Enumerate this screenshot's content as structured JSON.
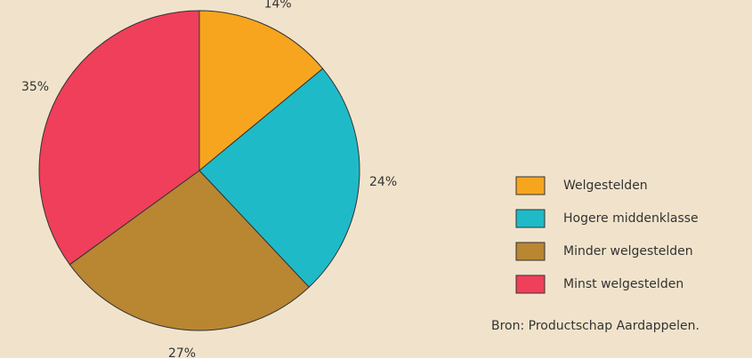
{
  "chart_data": {
    "type": "pie",
    "categories": [
      "Welgestelden",
      "Hogere middenklasse",
      "Minder welgestelden",
      "Minst welgestelden"
    ],
    "values": [
      14,
      24,
      27,
      35
    ],
    "value_labels": [
      "14%",
      "24%",
      "27%",
      "35%"
    ],
    "colors": [
      "#f7a51e",
      "#1fbac8",
      "#b98632",
      "#ef3f5a"
    ],
    "source": "Bron: Productschap Aardappelen."
  }
}
